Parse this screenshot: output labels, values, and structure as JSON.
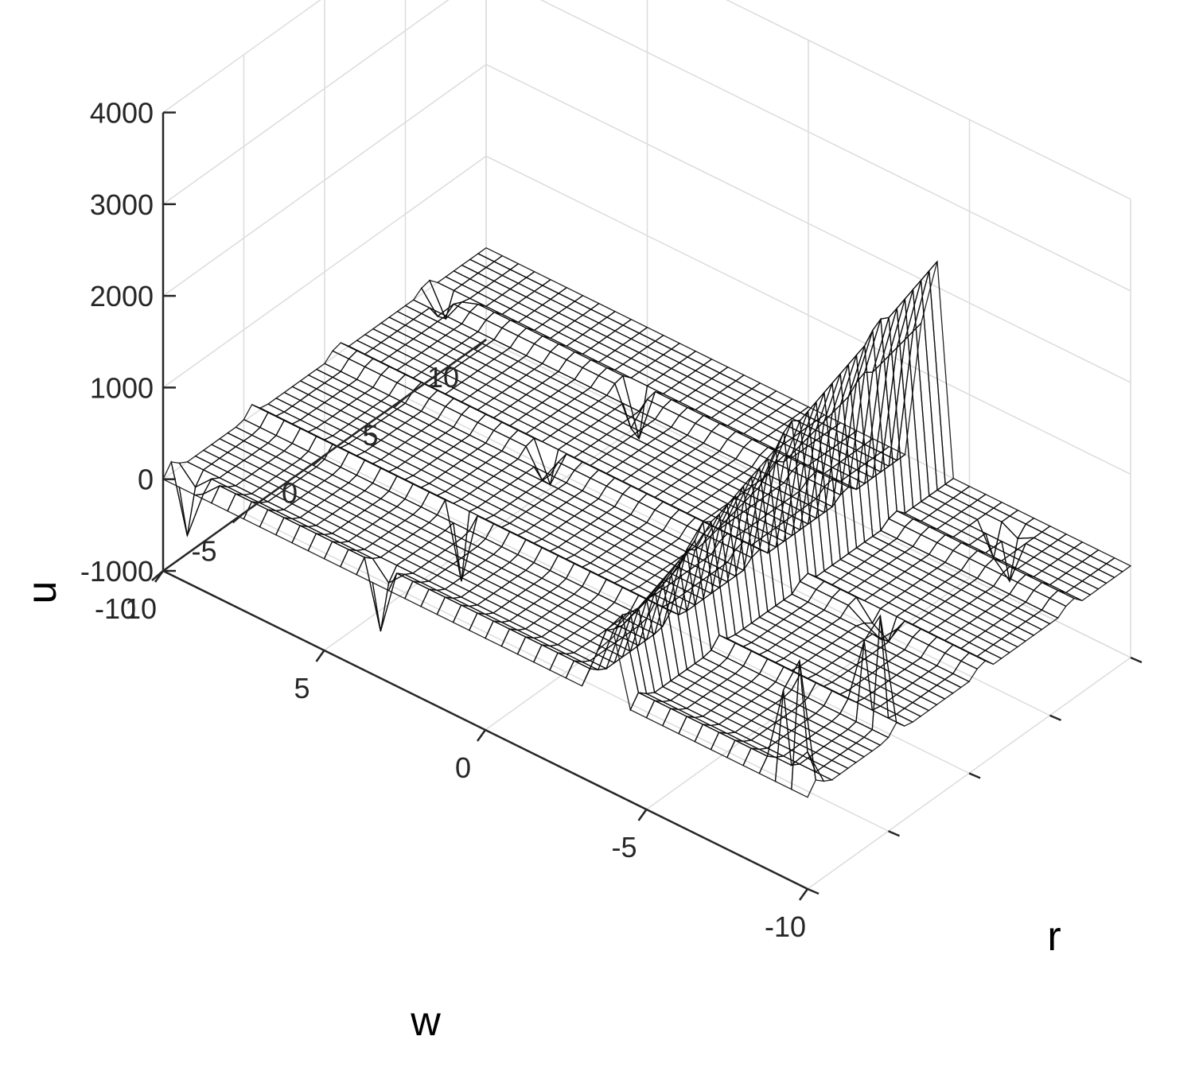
{
  "chart_data": {
    "type": "surface",
    "title": "",
    "xlabel": "w",
    "ylabel": "r",
    "zlabel": "u",
    "xlim": [
      -10,
      10
    ],
    "ylim": [
      -10,
      10
    ],
    "zlim": [
      -1000,
      4000
    ],
    "x_ticks": [
      {
        "value": -10,
        "label": "-10"
      },
      {
        "value": -5,
        "label": "-5"
      },
      {
        "value": 0,
        "label": "0"
      },
      {
        "value": 5,
        "label": "5"
      },
      {
        "value": 10,
        "label": "10"
      }
    ],
    "y_ticks": [
      {
        "value": -10,
        "label": "-10"
      },
      {
        "value": -5,
        "label": "-5"
      },
      {
        "value": 0,
        "label": "0"
      },
      {
        "value": 5,
        "label": "5"
      },
      {
        "value": 10,
        "label": "10"
      }
    ],
    "z_ticks": [
      {
        "value": -1000,
        "label": "-1000"
      },
      {
        "value": 0,
        "label": "0"
      },
      {
        "value": 1000,
        "label": "1000"
      },
      {
        "value": 2000,
        "label": "2000"
      },
      {
        "value": 3000,
        "label": "3000"
      },
      {
        "value": 4000,
        "label": "4000"
      }
    ],
    "grid": true,
    "colormap": "parula",
    "colors": {
      "low": "#352a87",
      "mid_low": "#0f5cdd",
      "mid": "#1481d6",
      "mid_high": "#38b99e",
      "high": "#d9ba56",
      "max": "#f9fb0e"
    },
    "surface": {
      "x_range": [
        -10,
        10
      ],
      "y_range": [
        -10,
        10
      ],
      "mesh_count": 41,
      "base_level": 0,
      "ridges": [
        {
          "along": "r",
          "w": -3.8,
          "r_from": -10,
          "r_to": 10,
          "amplitude_from": 1200,
          "amplitude_to": 3800,
          "serrated": true
        },
        {
          "along": "w",
          "r": -9.4,
          "w_from": -10,
          "w_to": 10,
          "amplitude": 150
        },
        {
          "along": "w",
          "r": -4.5,
          "w_from": -10,
          "w_to": 10,
          "amplitude": 120
        },
        {
          "along": "w",
          "r": 0.8,
          "w_from": -10,
          "w_to": 10,
          "amplitude": 150
        },
        {
          "along": "w",
          "r": 6.3,
          "w_from": -10,
          "w_to": 10,
          "amplitude": 130
        }
      ],
      "spikes": [
        {
          "w": -9.3,
          "r": -9.4,
          "u": 2200
        },
        {
          "w": -9.3,
          "r": -4.5,
          "u": 1800
        },
        {
          "w": 3.5,
          "r": -9.4,
          "u": -900
        },
        {
          "w": 3.5,
          "r": -4.5,
          "u": -800
        },
        {
          "w": 3.5,
          "r": 0.8,
          "u": -700
        },
        {
          "w": 3.5,
          "r": 6.3,
          "u": -1000
        },
        {
          "w": -6.8,
          "r": 8.6,
          "u": -900
        },
        {
          "w": -6.8,
          "r": 0.8,
          "u": -700
        },
        {
          "w": 9.4,
          "r": -9.4,
          "u": -1000
        },
        {
          "w": 9.4,
          "r": 6.3,
          "u": -600
        }
      ]
    }
  }
}
